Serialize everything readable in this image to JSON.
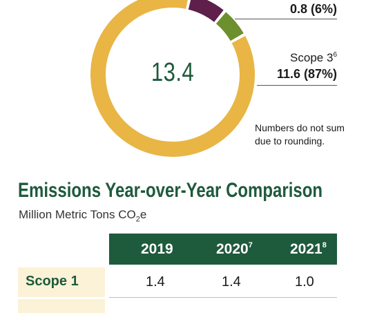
{
  "chart_data": [
    {
      "type": "pie",
      "center_label": "13.4",
      "slices": [
        {
          "name": "",
          "value": 1.0,
          "color": "#5e1f4a"
        },
        {
          "name": "",
          "value": 0.8,
          "color": "#6e8f2e"
        },
        {
          "name": "Scope 3",
          "value": 11.6,
          "color": "#e9b545"
        }
      ],
      "labels": {
        "top_value": "0.8 (6%)",
        "scope3_name": "Scope 3",
        "scope3_sup": "6",
        "scope3_value": "11.6 (87%)"
      },
      "note_line1": "Numbers do not sum",
      "note_line2": "due to rounding."
    },
    {
      "type": "table",
      "title": "Emissions Year-over-Year Comparison",
      "unit_prefix": "Million Metric Tons CO",
      "unit_sub": "2",
      "unit_suffix": "e",
      "columns": [
        {
          "label": "2019",
          "sup": ""
        },
        {
          "label": "2020",
          "sup": "7"
        },
        {
          "label": "2021",
          "sup": "8"
        }
      ],
      "rows": [
        {
          "label": "Scope 1",
          "values": [
            "1.4",
            "1.4",
            "1.0"
          ]
        }
      ]
    }
  ]
}
